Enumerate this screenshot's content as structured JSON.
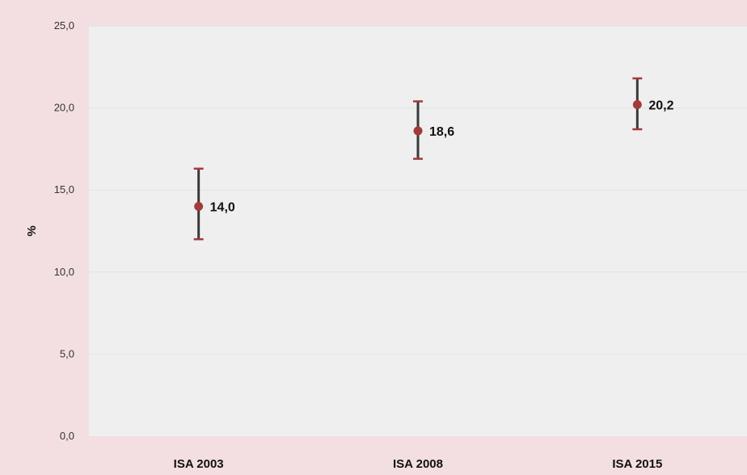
{
  "chart_data": {
    "type": "scatter",
    "title": "",
    "xlabel": "",
    "ylabel": "%",
    "ylim": [
      0,
      25
    ],
    "yticks": [
      "0,0",
      "5,0",
      "10,0",
      "15,0",
      "20,0",
      "25,0"
    ],
    "ytick_values": [
      0,
      5,
      10,
      15,
      20,
      25
    ],
    "grid": true,
    "categories": [
      "ISA 2003",
      "ISA 2008",
      "ISA 2015"
    ],
    "values": [
      14.0,
      18.6,
      20.2
    ],
    "error_low": [
      12.0,
      16.9,
      18.7
    ],
    "error_high": [
      16.3,
      20.4,
      21.8
    ],
    "value_labels": [
      "14,0",
      "18,6",
      "20,2"
    ]
  },
  "colors": {
    "background": "#f3dfe1",
    "plot_area": "#efefef",
    "marker": "#a23b3a",
    "error_bar": "#3a3a3a",
    "error_cap": "#a23b3a",
    "grid": "#e2e2e2"
  }
}
